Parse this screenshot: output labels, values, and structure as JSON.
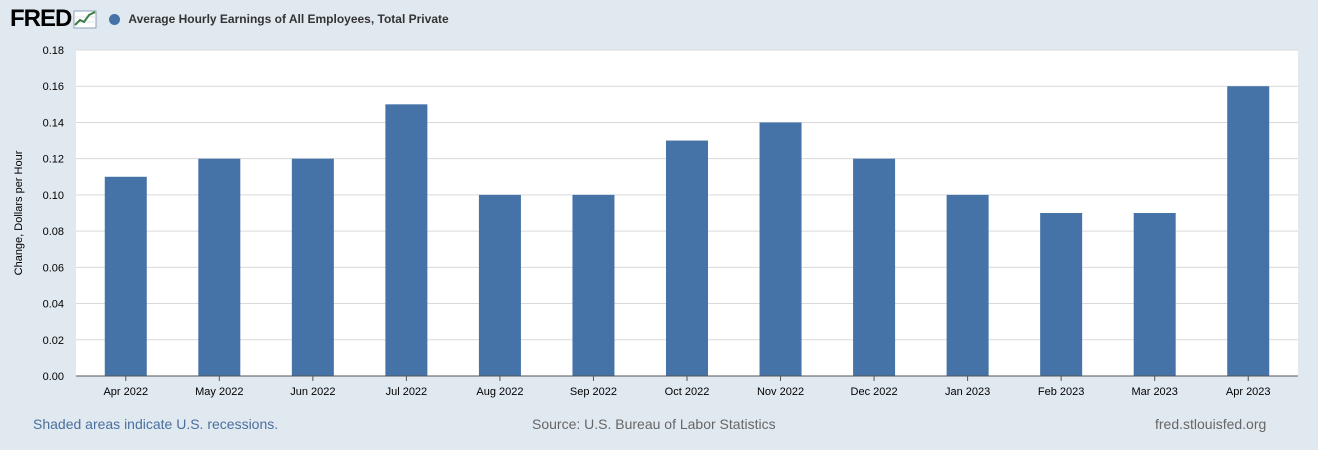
{
  "header": {
    "logo_text": "FRED",
    "logo_icon": "fred-line-graph-icon",
    "series_title": "Average Hourly Earnings of All Employees, Total Private"
  },
  "colors": {
    "bar": "#4572a7",
    "page_background": "#e1e9f0",
    "plot_background": "#ffffff",
    "grid": "#d9d9d9"
  },
  "chart_data": {
    "type": "bar",
    "title": "Average Hourly Earnings of All Employees, Total Private",
    "xlabel": "",
    "ylabel": "Change, Dollars per Hour",
    "ylim": [
      0,
      0.18
    ],
    "yticks": [
      "0.00",
      "0.02",
      "0.04",
      "0.06",
      "0.08",
      "0.10",
      "0.12",
      "0.14",
      "0.16",
      "0.18"
    ],
    "grid": true,
    "legend_position": "top-left",
    "categories": [
      "Apr 2022",
      "May 2022",
      "Jun 2022",
      "Jul 2022",
      "Aug 2022",
      "Sep 2022",
      "Oct 2022",
      "Nov 2022",
      "Dec 2022",
      "Jan 2023",
      "Feb 2023",
      "Mar 2023",
      "Apr 2023"
    ],
    "series": [
      {
        "name": "Average Hourly Earnings of All Employees, Total Private",
        "values": [
          0.11,
          0.12,
          0.12,
          0.15,
          0.1,
          0.1,
          0.13,
          0.14,
          0.12,
          0.1,
          0.09,
          0.09,
          0.16
        ]
      }
    ]
  },
  "footer": {
    "recession_note": "Shaded areas indicate U.S. recessions.",
    "source": "Source: U.S. Bureau of Labor Statistics",
    "site": "fred.stlouisfed.org"
  }
}
